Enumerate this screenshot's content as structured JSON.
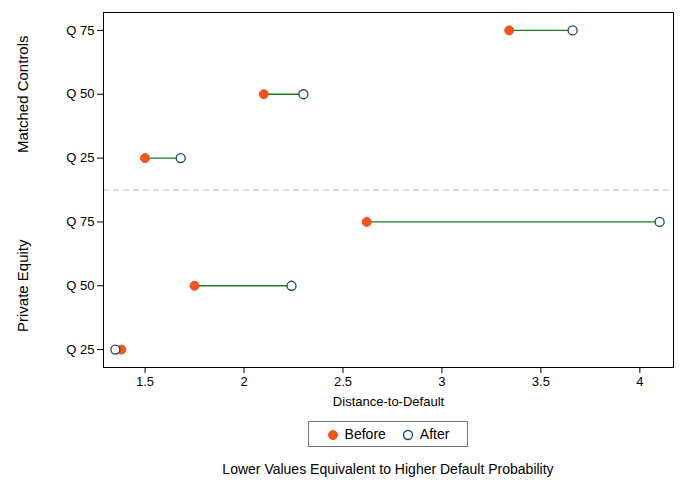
{
  "chart_data": {
    "type": "dumbbell",
    "xlabel": "Distance-to-Default",
    "caption": "Lower Values Equivalent to Higher Default Probability",
    "categories": [
      "Q 75",
      "Q 50",
      "Q 25",
      "Q 75",
      "Q 50",
      "Q 25"
    ],
    "category_groups": [
      "Matched Controls",
      "Matched Controls",
      "Matched Controls",
      "Private Equity",
      "Private Equity",
      "Private Equity"
    ],
    "series": [
      {
        "name": "Before",
        "color": "#f0561d",
        "marker": "circle",
        "values": [
          3.34,
          2.1,
          1.5,
          2.62,
          1.75,
          1.38
        ]
      },
      {
        "name": "After",
        "color": "#1a476f",
        "marker": "hollow circle",
        "values": [
          3.66,
          2.3,
          1.68,
          4.1,
          2.24,
          1.35
        ]
      }
    ],
    "xlim": [
      1.29,
      4.17
    ],
    "xticks": [
      1.5,
      2,
      2.5,
      3,
      3.5,
      4
    ],
    "grid": false,
    "legend": "bottom"
  }
}
